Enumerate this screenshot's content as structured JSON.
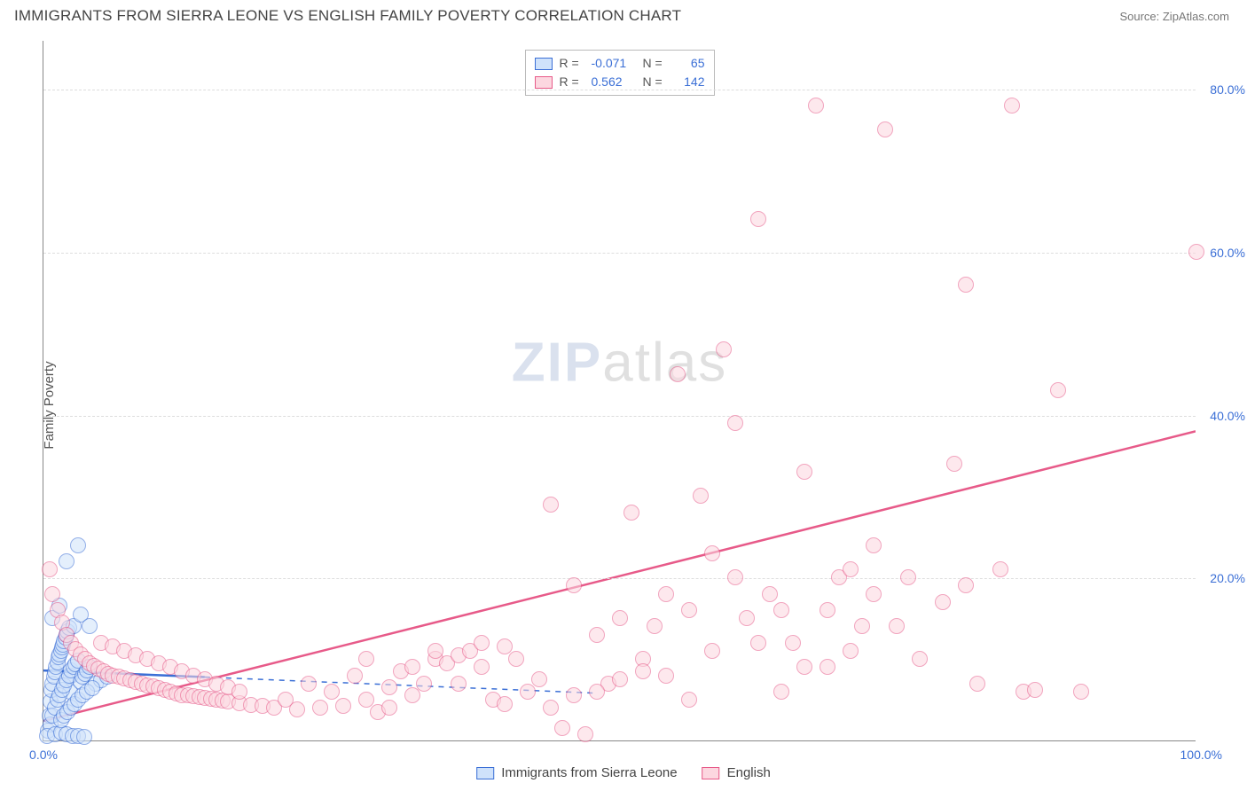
{
  "header": {
    "title": "IMMIGRANTS FROM SIERRA LEONE VS ENGLISH FAMILY POVERTY CORRELATION CHART",
    "source_label": "Source: ",
    "source_value": "ZipAtlas.com"
  },
  "chart": {
    "type": "scatter",
    "ylabel": "Family Poverty",
    "xlim": [
      0,
      100
    ],
    "ylim": [
      0,
      86
    ],
    "yticks": [
      20,
      40,
      60,
      80
    ],
    "ytick_labels": [
      "20.0%",
      "40.0%",
      "60.0%",
      "80.0%"
    ],
    "xtick_labels": {
      "min": "0.0%",
      "max": "100.0%"
    },
    "background_color": "#ffffff",
    "grid_color": "#dddddd",
    "axis_color": "#888888",
    "marker_radius": 9,
    "marker_stroke_width": 1.5,
    "watermark": "ZIPatlas",
    "series": [
      {
        "key": "sierra_leone",
        "label": "Immigrants from Sierra Leone",
        "fill": "#cfe2fb",
        "stroke": "#3b6fd6",
        "fill_opacity": 0.55,
        "trend": {
          "slope": -0.058,
          "intercept": 8.6,
          "dash_after_x": 14,
          "x_extent": 48
        },
        "R": -0.071,
        "N": 65,
        "points": [
          [
            0.4,
            1.2
          ],
          [
            0.5,
            3.0
          ],
          [
            0.6,
            4.8
          ],
          [
            0.7,
            6.2
          ],
          [
            0.8,
            7.0
          ],
          [
            0.9,
            7.8
          ],
          [
            1.0,
            8.4
          ],
          [
            1.1,
            9.0
          ],
          [
            1.2,
            9.6
          ],
          [
            1.3,
            10.2
          ],
          [
            1.4,
            10.6
          ],
          [
            1.5,
            11.0
          ],
          [
            1.6,
            11.4
          ],
          [
            1.7,
            11.8
          ],
          [
            1.8,
            12.2
          ],
          [
            1.9,
            12.6
          ],
          [
            2.0,
            13.0
          ],
          [
            2.1,
            13.4
          ],
          [
            2.2,
            13.8
          ],
          [
            2.3,
            6.0
          ],
          [
            2.4,
            8.0
          ],
          [
            0.6,
            2.0
          ],
          [
            0.8,
            3.0
          ],
          [
            1.0,
            4.0
          ],
          [
            1.2,
            5.0
          ],
          [
            1.4,
            5.6
          ],
          [
            1.6,
            6.2
          ],
          [
            1.8,
            6.8
          ],
          [
            2.0,
            7.4
          ],
          [
            2.2,
            8.0
          ],
          [
            2.4,
            8.6
          ],
          [
            2.6,
            9.0
          ],
          [
            2.8,
            9.4
          ],
          [
            3.0,
            9.8
          ],
          [
            3.2,
            7.2
          ],
          [
            3.4,
            7.8
          ],
          [
            3.6,
            8.2
          ],
          [
            3.8,
            8.6
          ],
          [
            4.0,
            9.0
          ],
          [
            4.5,
            7.0
          ],
          [
            5.0,
            7.4
          ],
          [
            5.5,
            7.8
          ],
          [
            0.3,
            0.5
          ],
          [
            1.0,
            0.8
          ],
          [
            1.5,
            1.0
          ],
          [
            2.0,
            0.8
          ],
          [
            2.5,
            0.6
          ],
          [
            3.0,
            0.5
          ],
          [
            3.5,
            0.4
          ],
          [
            0.8,
            15.0
          ],
          [
            1.4,
            16.5
          ],
          [
            2.6,
            14.0
          ],
          [
            3.2,
            15.5
          ],
          [
            4.0,
            14.0
          ],
          [
            2.0,
            22.0
          ],
          [
            3.0,
            24.0
          ],
          [
            1.5,
            2.5
          ],
          [
            1.8,
            3.0
          ],
          [
            2.1,
            3.5
          ],
          [
            2.4,
            4.0
          ],
          [
            2.7,
            4.5
          ],
          [
            3.0,
            5.0
          ],
          [
            3.4,
            5.5
          ],
          [
            3.8,
            6.0
          ],
          [
            4.2,
            6.4
          ]
        ]
      },
      {
        "key": "english",
        "label": "English",
        "fill": "#fcd7e0",
        "stroke": "#e75a89",
        "fill_opacity": 0.55,
        "trend": {
          "slope": 0.356,
          "intercept": 2.4,
          "dash_after_x": null,
          "x_extent": 100
        },
        "R": 0.562,
        "N": 142,
        "points": [
          [
            0.5,
            21.0
          ],
          [
            0.8,
            18.0
          ],
          [
            1.2,
            16.0
          ],
          [
            1.6,
            14.5
          ],
          [
            2.0,
            13.0
          ],
          [
            2.4,
            12.0
          ],
          [
            2.8,
            11.2
          ],
          [
            3.2,
            10.6
          ],
          [
            3.6,
            10.0
          ],
          [
            4.0,
            9.5
          ],
          [
            4.4,
            9.1
          ],
          [
            4.8,
            8.8
          ],
          [
            5.2,
            8.5
          ],
          [
            5.6,
            8.2
          ],
          [
            6.0,
            8.0
          ],
          [
            6.5,
            7.8
          ],
          [
            7.0,
            7.6
          ],
          [
            7.5,
            7.4
          ],
          [
            8.0,
            7.2
          ],
          [
            8.5,
            7.0
          ],
          [
            9.0,
            6.8
          ],
          [
            9.5,
            6.6
          ],
          [
            10.0,
            6.4
          ],
          [
            10.5,
            6.2
          ],
          [
            11.0,
            6.0
          ],
          [
            11.5,
            5.8
          ],
          [
            12.0,
            5.6
          ],
          [
            12.5,
            5.5
          ],
          [
            13.0,
            5.4
          ],
          [
            13.5,
            5.3
          ],
          [
            14.0,
            5.2
          ],
          [
            14.5,
            5.1
          ],
          [
            15.0,
            5.0
          ],
          [
            15.5,
            4.9
          ],
          [
            16.0,
            4.8
          ],
          [
            17.0,
            4.6
          ],
          [
            18.0,
            4.4
          ],
          [
            19.0,
            4.2
          ],
          [
            20.0,
            4.0
          ],
          [
            21.0,
            5.0
          ],
          [
            22.0,
            3.8
          ],
          [
            23.0,
            7.0
          ],
          [
            24.0,
            4.0
          ],
          [
            25.0,
            6.0
          ],
          [
            26.0,
            4.2
          ],
          [
            27.0,
            8.0
          ],
          [
            28.0,
            5.0
          ],
          [
            29.0,
            3.5
          ],
          [
            30.0,
            6.5
          ],
          [
            31.0,
            8.5
          ],
          [
            32.0,
            9.0
          ],
          [
            33.0,
            7.0
          ],
          [
            34.0,
            10.0
          ],
          [
            35.0,
            9.5
          ],
          [
            36.0,
            10.5
          ],
          [
            37.0,
            11.0
          ],
          [
            38.0,
            9.0
          ],
          [
            39.0,
            5.0
          ],
          [
            40.0,
            11.5
          ],
          [
            41.0,
            10.0
          ],
          [
            42.0,
            6.0
          ],
          [
            43.0,
            7.5
          ],
          [
            44.0,
            29.0
          ],
          [
            45.0,
            1.5
          ],
          [
            46.0,
            19.0
          ],
          [
            47.0,
            0.8
          ],
          [
            48.0,
            13.0
          ],
          [
            49.0,
            7.0
          ],
          [
            50.0,
            15.0
          ],
          [
            51.0,
            28.0
          ],
          [
            52.0,
            10.0
          ],
          [
            53.0,
            14.0
          ],
          [
            54.0,
            8.0
          ],
          [
            55.0,
            45.0
          ],
          [
            56.0,
            16.0
          ],
          [
            57.0,
            30.0
          ],
          [
            58.0,
            23.0
          ],
          [
            59.0,
            48.0
          ],
          [
            60.0,
            39.0
          ],
          [
            61.0,
            15.0
          ],
          [
            62.0,
            64.0
          ],
          [
            63.0,
            18.0
          ],
          [
            64.0,
            16.0
          ],
          [
            65.0,
            12.0
          ],
          [
            66.0,
            33.0
          ],
          [
            67.0,
            78.0
          ],
          [
            68.0,
            9.0
          ],
          [
            69.0,
            20.0
          ],
          [
            70.0,
            21.0
          ],
          [
            71.0,
            14.0
          ],
          [
            72.0,
            18.0
          ],
          [
            73.0,
            75.0
          ],
          [
            74.0,
            14.0
          ],
          [
            75.0,
            20.0
          ],
          [
            78.0,
            17.0
          ],
          [
            79.0,
            34.0
          ],
          [
            80.0,
            56.0
          ],
          [
            81.0,
            7.0
          ],
          [
            83.0,
            21.0
          ],
          [
            84.0,
            78.0
          ],
          [
            85.0,
            6.0
          ],
          [
            86.0,
            6.2
          ],
          [
            88.0,
            43.0
          ],
          [
            90.0,
            6.0
          ],
          [
            100.0,
            60.0
          ],
          [
            5.0,
            12.0
          ],
          [
            6.0,
            11.5
          ],
          [
            7.0,
            11.0
          ],
          [
            8.0,
            10.5
          ],
          [
            9.0,
            10.0
          ],
          [
            10.0,
            9.5
          ],
          [
            11.0,
            9.0
          ],
          [
            12.0,
            8.5
          ],
          [
            13.0,
            8.0
          ],
          [
            14.0,
            7.5
          ],
          [
            15.0,
            7.0
          ],
          [
            16.0,
            6.5
          ],
          [
            17.0,
            6.0
          ],
          [
            28.0,
            10.0
          ],
          [
            30.0,
            4.0
          ],
          [
            32.0,
            5.5
          ],
          [
            34.0,
            11.0
          ],
          [
            36.0,
            7.0
          ],
          [
            38.0,
            12.0
          ],
          [
            40.0,
            4.5
          ],
          [
            44.0,
            4.0
          ],
          [
            46.0,
            5.5
          ],
          [
            48.0,
            6.0
          ],
          [
            50.0,
            7.5
          ],
          [
            52.0,
            8.5
          ],
          [
            54.0,
            18.0
          ],
          [
            56.0,
            5.0
          ],
          [
            58.0,
            11.0
          ],
          [
            60.0,
            20.0
          ],
          [
            62.0,
            12.0
          ],
          [
            64.0,
            6.0
          ],
          [
            66.0,
            9.0
          ],
          [
            68.0,
            16.0
          ],
          [
            70.0,
            11.0
          ],
          [
            72.0,
            24.0
          ],
          [
            76.0,
            10.0
          ],
          [
            80.0,
            19.0
          ]
        ]
      }
    ],
    "legend_top": {
      "R_label": "R =",
      "N_label": "N ="
    }
  },
  "axis_label_color": "#3b6fd6"
}
